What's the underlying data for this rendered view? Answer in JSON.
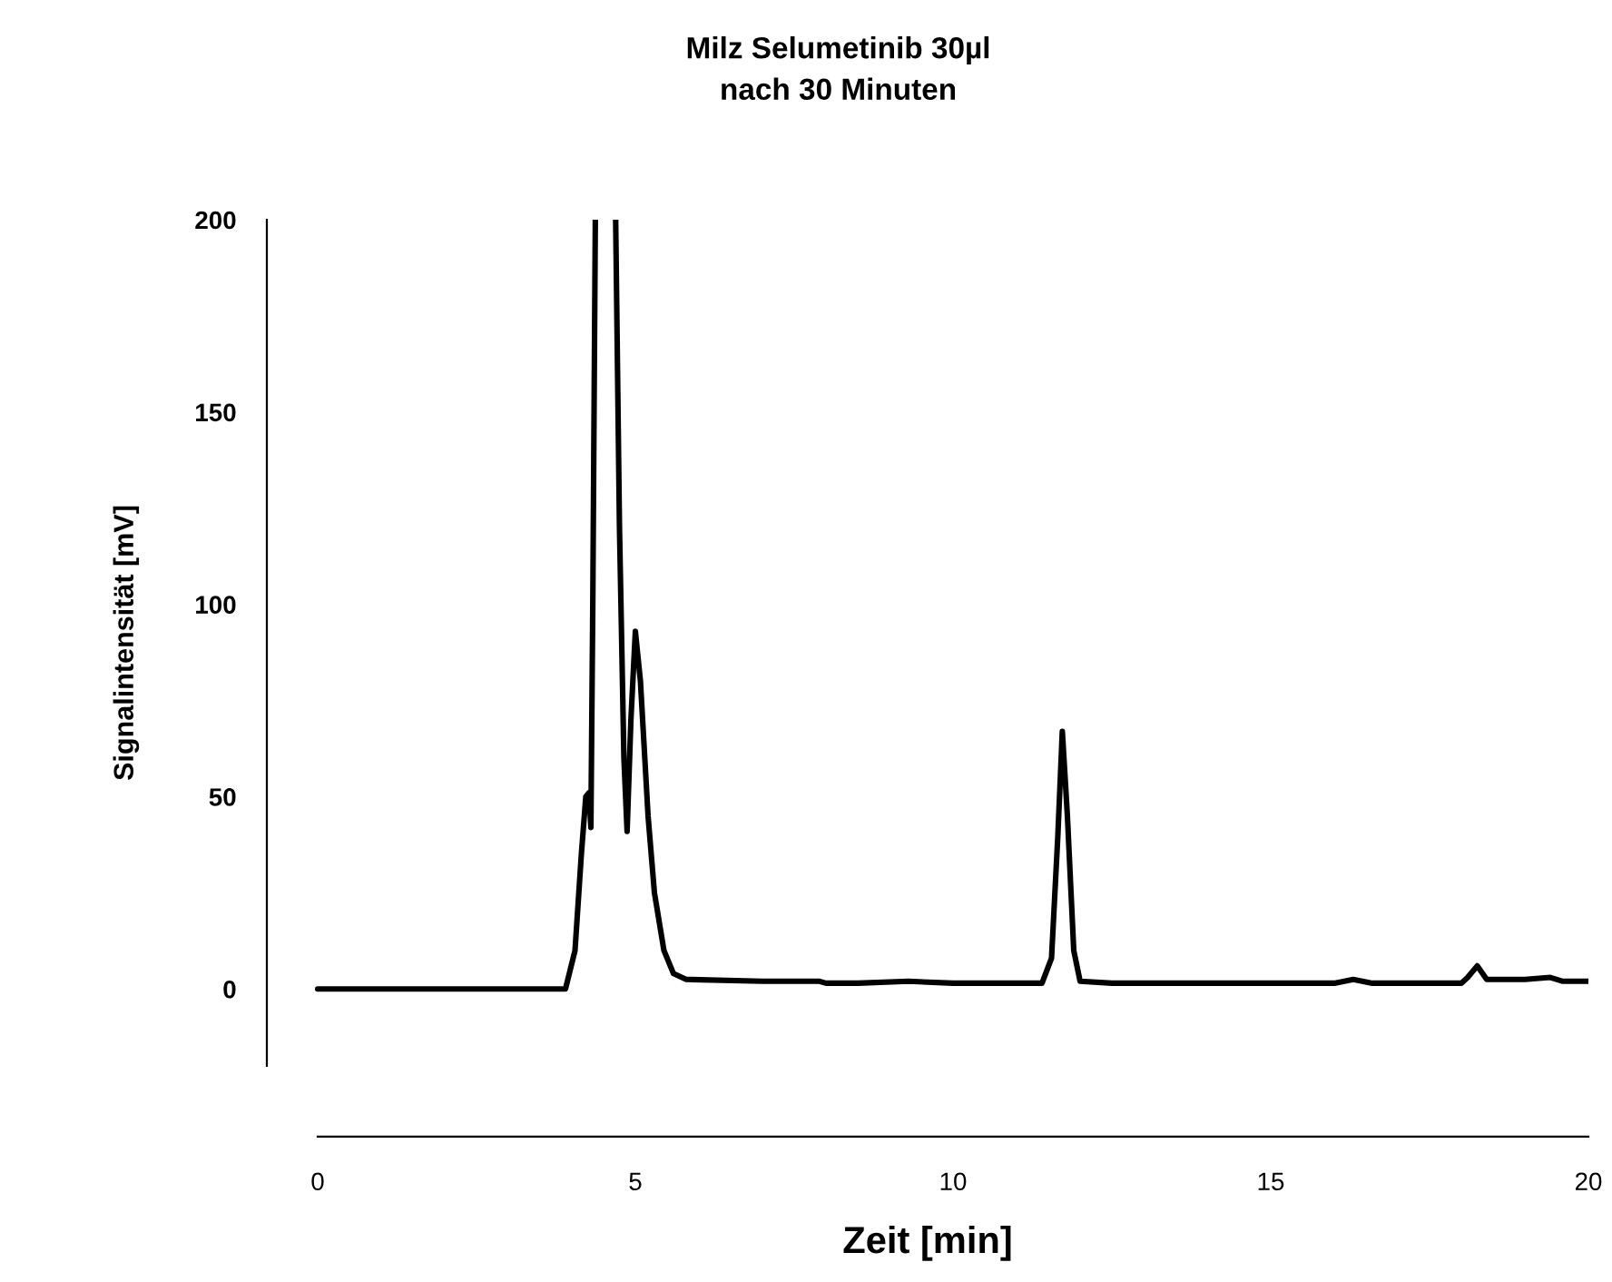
{
  "chart_data": {
    "type": "line",
    "title": "Milz Selumetinib 30µl\nnach 30 Minuten",
    "xlabel": "Zeit [min]",
    "ylabel": "Signalintensität [mV]",
    "xlim": [
      -0.8,
      20
    ],
    "xticks": [
      0,
      5,
      10,
      15,
      20
    ],
    "ylim": [
      -20,
      200
    ],
    "yticks": [
      0,
      50,
      100,
      150,
      200
    ],
    "marker": "none",
    "line_style": "solid",
    "series": [
      {
        "color": "#000000",
        "x": [
          0,
          3.9,
          4.05,
          4.15,
          4.22,
          4.27,
          4.3,
          4.33,
          4.37,
          4.5,
          4.69,
          4.75,
          4.82,
          4.87,
          4.93,
          5.0,
          5.08,
          5.2,
          5.3,
          5.45,
          5.6,
          5.8,
          7,
          7.9,
          8.0,
          8.5,
          9.3,
          10,
          11,
          11.4,
          11.55,
          11.65,
          11.72,
          11.8,
          11.9,
          12,
          12.5,
          14,
          16,
          16.3,
          16.6,
          18,
          18.1,
          18.25,
          18.4,
          19,
          19.4,
          19.6,
          20
        ],
        "values": [
          0,
          0,
          10,
          35,
          50,
          51,
          42,
          100,
          200,
          null,
          200,
          120,
          60,
          41,
          70,
          93,
          80,
          45,
          25,
          10,
          4,
          2.5,
          2,
          2,
          1.5,
          1.5,
          2,
          1.5,
          1.5,
          1.5,
          8,
          40,
          67,
          45,
          10,
          2,
          1.5,
          1.5,
          1.5,
          2.5,
          1.5,
          1.5,
          3,
          6,
          2.5,
          2.5,
          3,
          2,
          2
        ]
      }
    ]
  }
}
